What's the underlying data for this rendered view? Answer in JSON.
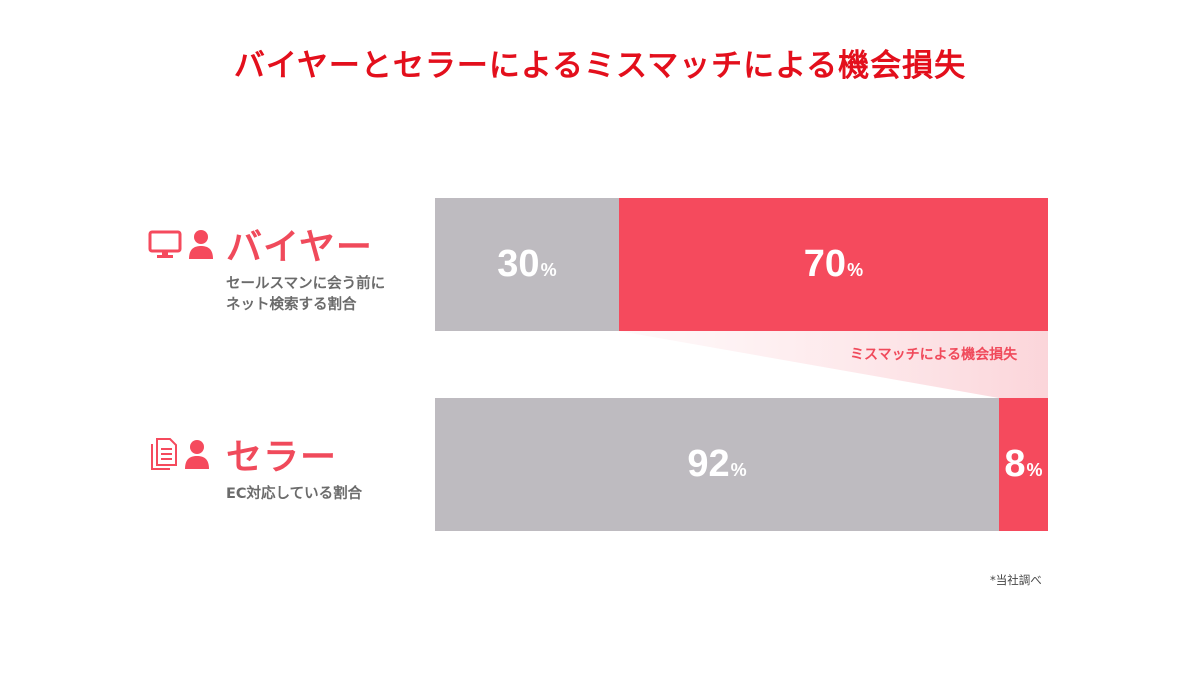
{
  "title": "バイヤーとセラーによるミスマッチによる機会損失",
  "rows": [
    {
      "name": "バイヤー",
      "sub_line1": "セールスマンに会う前に",
      "sub_line2": "ネット検索する割合",
      "icons": [
        "monitor-icon",
        "person-icon"
      ]
    },
    {
      "name": "セラー",
      "sub_line1": "EC対応している割合",
      "sub_line2": "",
      "icons": [
        "document-icon",
        "person-icon"
      ]
    }
  ],
  "mismatch_label": "ミスマッチによる機会損失",
  "footnote": "*当社調べ",
  "colors": {
    "title": "#e30f1c",
    "accent": "#f54a5d",
    "grey": "#bebbc0",
    "wedge": "#fde3e6"
  },
  "chart_data": {
    "type": "bar",
    "stacked": true,
    "orientation": "horizontal",
    "unit": "%",
    "categories": [
      "バイヤー",
      "セラー"
    ],
    "series": [
      {
        "values": [
          30,
          92
        ]
      },
      {
        "values": [
          70,
          8
        ]
      }
    ],
    "xlim": [
      0,
      100
    ],
    "grid": false
  }
}
